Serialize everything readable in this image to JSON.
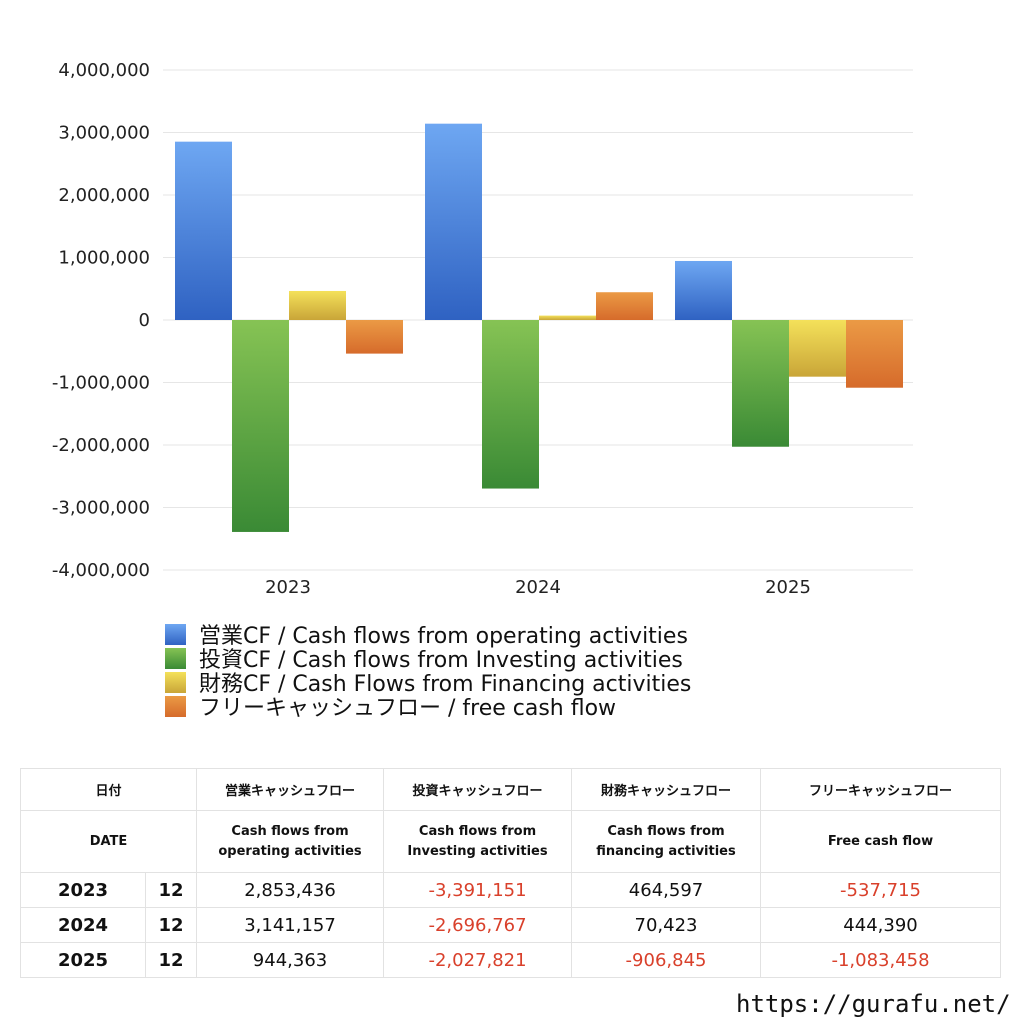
{
  "chart_data": {
    "type": "bar",
    "categories": [
      "2023",
      "2024",
      "2025"
    ],
    "series": [
      {
        "name": "営業CF / Cash flows from operating activities",
        "values": [
          2853436,
          3141157,
          944363
        ],
        "color_top": "#6ea7f2",
        "color_bottom": "#2f62c2"
      },
      {
        "name": "投資CF / Cash flows from Investing activities",
        "values": [
          -3391151,
          -2696767,
          -2027821
        ],
        "color_top": "#86c354",
        "color_bottom": "#3a8a35"
      },
      {
        "name": "財務CF / Cash Flows from Financing activities",
        "values": [
          464597,
          70423,
          -906845
        ],
        "color_top": "#f4e15a",
        "color_bottom": "#c9a538"
      },
      {
        "name": "フリーキャッシュフロー / free cash flow",
        "values": [
          -537715,
          444390,
          -1083458
        ],
        "color_top": "#eb9a45",
        "color_bottom": "#d66b2b"
      }
    ],
    "yticks": [
      "4,000,000",
      "3,000,000",
      "2,000,000",
      "1,000,000",
      "0",
      "-1,000,000",
      "-2,000,000",
      "-3,000,000",
      "-4,000,000"
    ],
    "ylim": [
      -4000000,
      4000000
    ],
    "grid": true,
    "legend_position": "bottom-left"
  },
  "table": {
    "header_row1": [
      "日付",
      "営業キャッシュフロー",
      "投資キャッシュフロー",
      "財務キャッシュフロー",
      "フリーキャッシュフロー"
    ],
    "header_row2": [
      "DATE",
      "Cash flows from\noperating activities",
      "Cash flows from\nInvesting activities",
      "Cash flows from\nfinancing activities",
      "Free cash flow"
    ],
    "rows": [
      {
        "year": "2023",
        "month": "12",
        "values": [
          "2,853,436",
          "-3,391,151",
          "464,597",
          "-537,715"
        ]
      },
      {
        "year": "2024",
        "month": "12",
        "values": [
          "3,141,157",
          "-2,696,767",
          "70,423",
          "444,390"
        ]
      },
      {
        "year": "2025",
        "month": "12",
        "values": [
          "944,363",
          "-2,027,821",
          "-906,845",
          "-1,083,458"
        ]
      }
    ],
    "negative_color": "#d9402b"
  },
  "site_url": "https://gurafu.net/"
}
